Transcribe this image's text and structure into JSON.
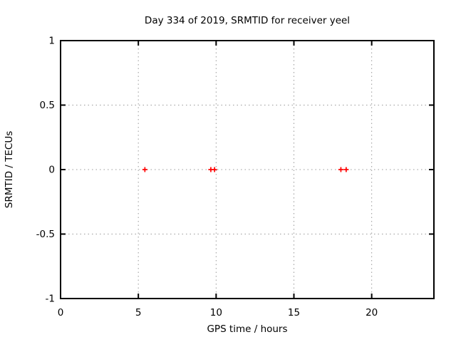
{
  "window": {
    "background": "#ffffff"
  },
  "chart_data": {
    "type": "scatter",
    "title": "Day 334 of 2019, SRMTID for receiver yeel",
    "xlabel": "GPS time / hours",
    "ylabel": "SRMTID / TECUs",
    "xlim": [
      0,
      24
    ],
    "ylim": [
      -1,
      1
    ],
    "xticks": [
      0,
      5,
      10,
      15,
      20
    ],
    "yticks": [
      -1,
      -0.5,
      0,
      0.5,
      1
    ],
    "grid": true,
    "legend": "none",
    "marker": "plus",
    "marker_color": "#ff0000",
    "grid_color": "#999999",
    "axis_color": "#000000",
    "series": [
      {
        "name": "SRMTID",
        "points": [
          {
            "x": 5.42,
            "y": 0
          },
          {
            "x": 9.66,
            "y": 0
          },
          {
            "x": 9.9,
            "y": 0
          },
          {
            "x": 18.02,
            "y": 0
          },
          {
            "x": 18.36,
            "y": 0
          }
        ]
      }
    ]
  }
}
